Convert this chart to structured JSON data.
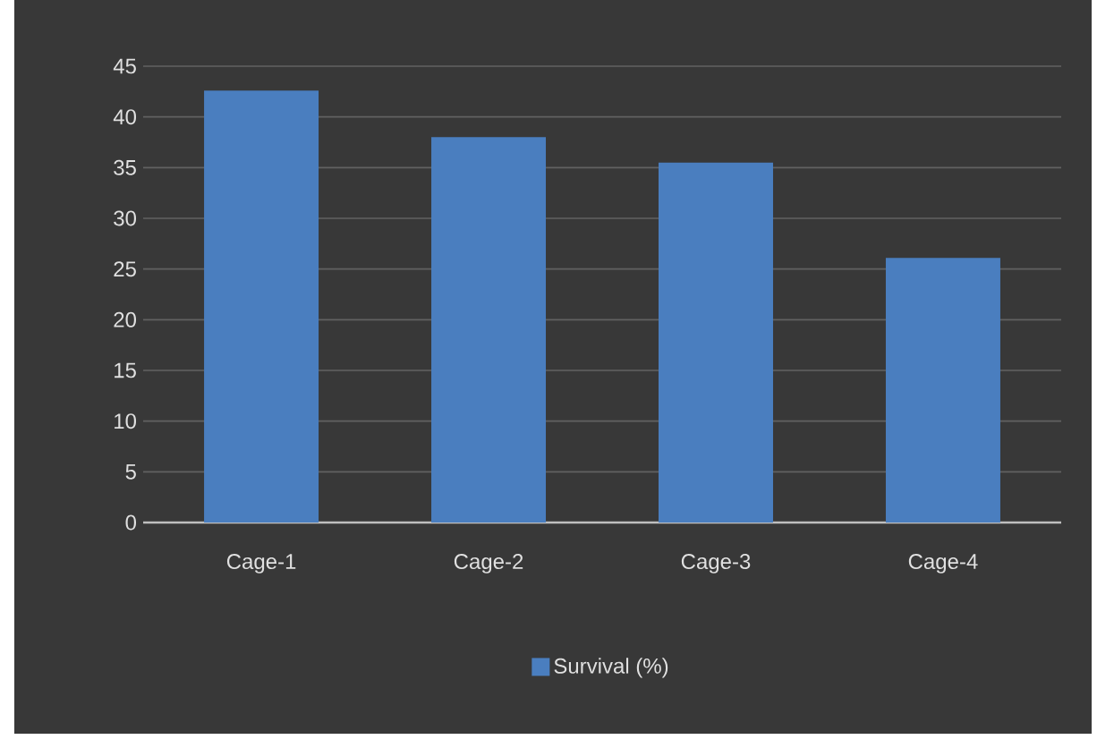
{
  "chart_data": {
    "type": "bar",
    "categories": [
      "Cage-1",
      "Cage-2",
      "Cage-3",
      "Cage-4"
    ],
    "series": [
      {
        "name": "Survival (%)",
        "color": "#4a7ebf",
        "values": [
          42.6,
          38.0,
          35.5,
          26.1
        ]
      }
    ],
    "ylim": [
      0,
      45
    ],
    "yticks": [
      0,
      5,
      10,
      15,
      20,
      25,
      30,
      35,
      40,
      45
    ],
    "grid": "y",
    "legend": "bottom"
  }
}
